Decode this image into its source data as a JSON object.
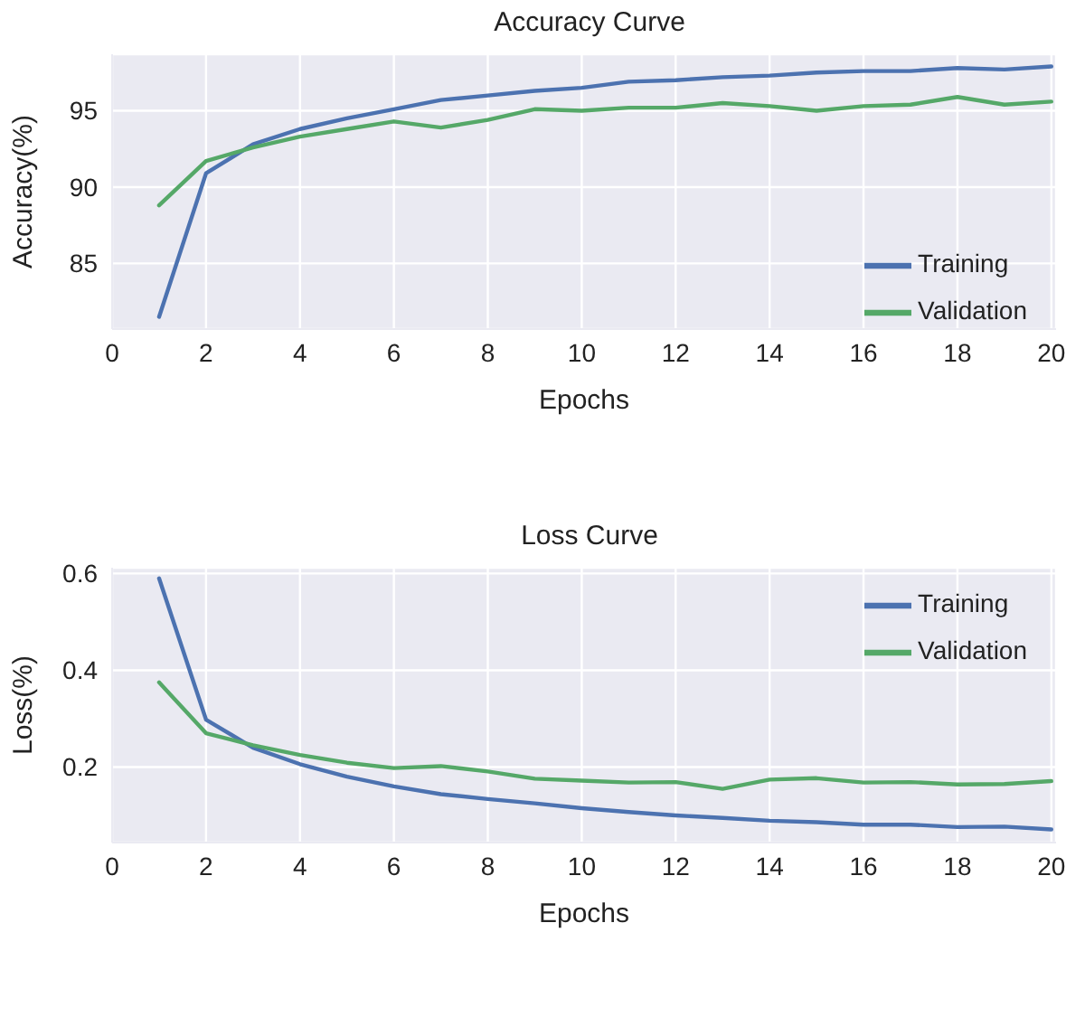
{
  "chart_data": [
    {
      "type": "line",
      "title": "Accuracy Curve",
      "xlabel": "Epochs",
      "ylabel": "Accuracy(%)",
      "x": [
        1,
        2,
        3,
        4,
        5,
        6,
        7,
        8,
        9,
        10,
        11,
        12,
        13,
        14,
        15,
        16,
        17,
        18,
        19,
        20
      ],
      "xlim": [
        0,
        20.1
      ],
      "xticks": [
        0,
        2,
        4,
        6,
        8,
        10,
        12,
        14,
        16,
        18,
        20
      ],
      "ylim": [
        80.7,
        98.7
      ],
      "yticks": [
        85,
        90,
        95
      ],
      "grid": true,
      "legend": "bottom right",
      "line_style": "solid",
      "series": [
        {
          "name": "Training",
          "color": "#4c72b0",
          "values": [
            81.5,
            90.9,
            92.8,
            93.8,
            94.5,
            95.1,
            95.7,
            96.0,
            96.3,
            96.5,
            96.9,
            97.0,
            97.2,
            97.3,
            97.5,
            97.6,
            97.6,
            97.8,
            97.7,
            97.9
          ]
        },
        {
          "name": "Validation",
          "color": "#55a868",
          "values": [
            88.8,
            91.7,
            92.6,
            93.3,
            93.8,
            94.3,
            93.9,
            94.4,
            95.1,
            95.0,
            95.2,
            95.2,
            95.5,
            95.3,
            95.0,
            95.3,
            95.4,
            95.9,
            95.4,
            95.6
          ]
        }
      ]
    },
    {
      "type": "line",
      "title": "Loss Curve",
      "xlabel": "Epochs",
      "ylabel": "Loss(%)",
      "x": [
        1,
        2,
        3,
        4,
        5,
        6,
        7,
        8,
        9,
        10,
        11,
        12,
        13,
        14,
        15,
        16,
        17,
        18,
        19,
        20
      ],
      "xlim": [
        0,
        20.1
      ],
      "xticks": [
        0,
        2,
        4,
        6,
        8,
        10,
        12,
        14,
        16,
        18,
        20
      ],
      "ylim": [
        0.044,
        0.612
      ],
      "yticks": [
        0.2,
        0.4,
        0.6
      ],
      "grid": true,
      "legend": "top right",
      "line_style": "solid",
      "series": [
        {
          "name": "Training",
          "color": "#4c72b0",
          "values": [
            0.59,
            0.298,
            0.24,
            0.206,
            0.18,
            0.16,
            0.144,
            0.134,
            0.125,
            0.115,
            0.107,
            0.1,
            0.095,
            0.089,
            0.086,
            0.081,
            0.081,
            0.076,
            0.077,
            0.071
          ]
        },
        {
          "name": "Validation",
          "color": "#55a868",
          "values": [
            0.375,
            0.27,
            0.245,
            0.225,
            0.209,
            0.198,
            0.202,
            0.191,
            0.176,
            0.172,
            0.168,
            0.169,
            0.155,
            0.174,
            0.177,
            0.168,
            0.169,
            0.164,
            0.165,
            0.171
          ]
        }
      ]
    }
  ]
}
